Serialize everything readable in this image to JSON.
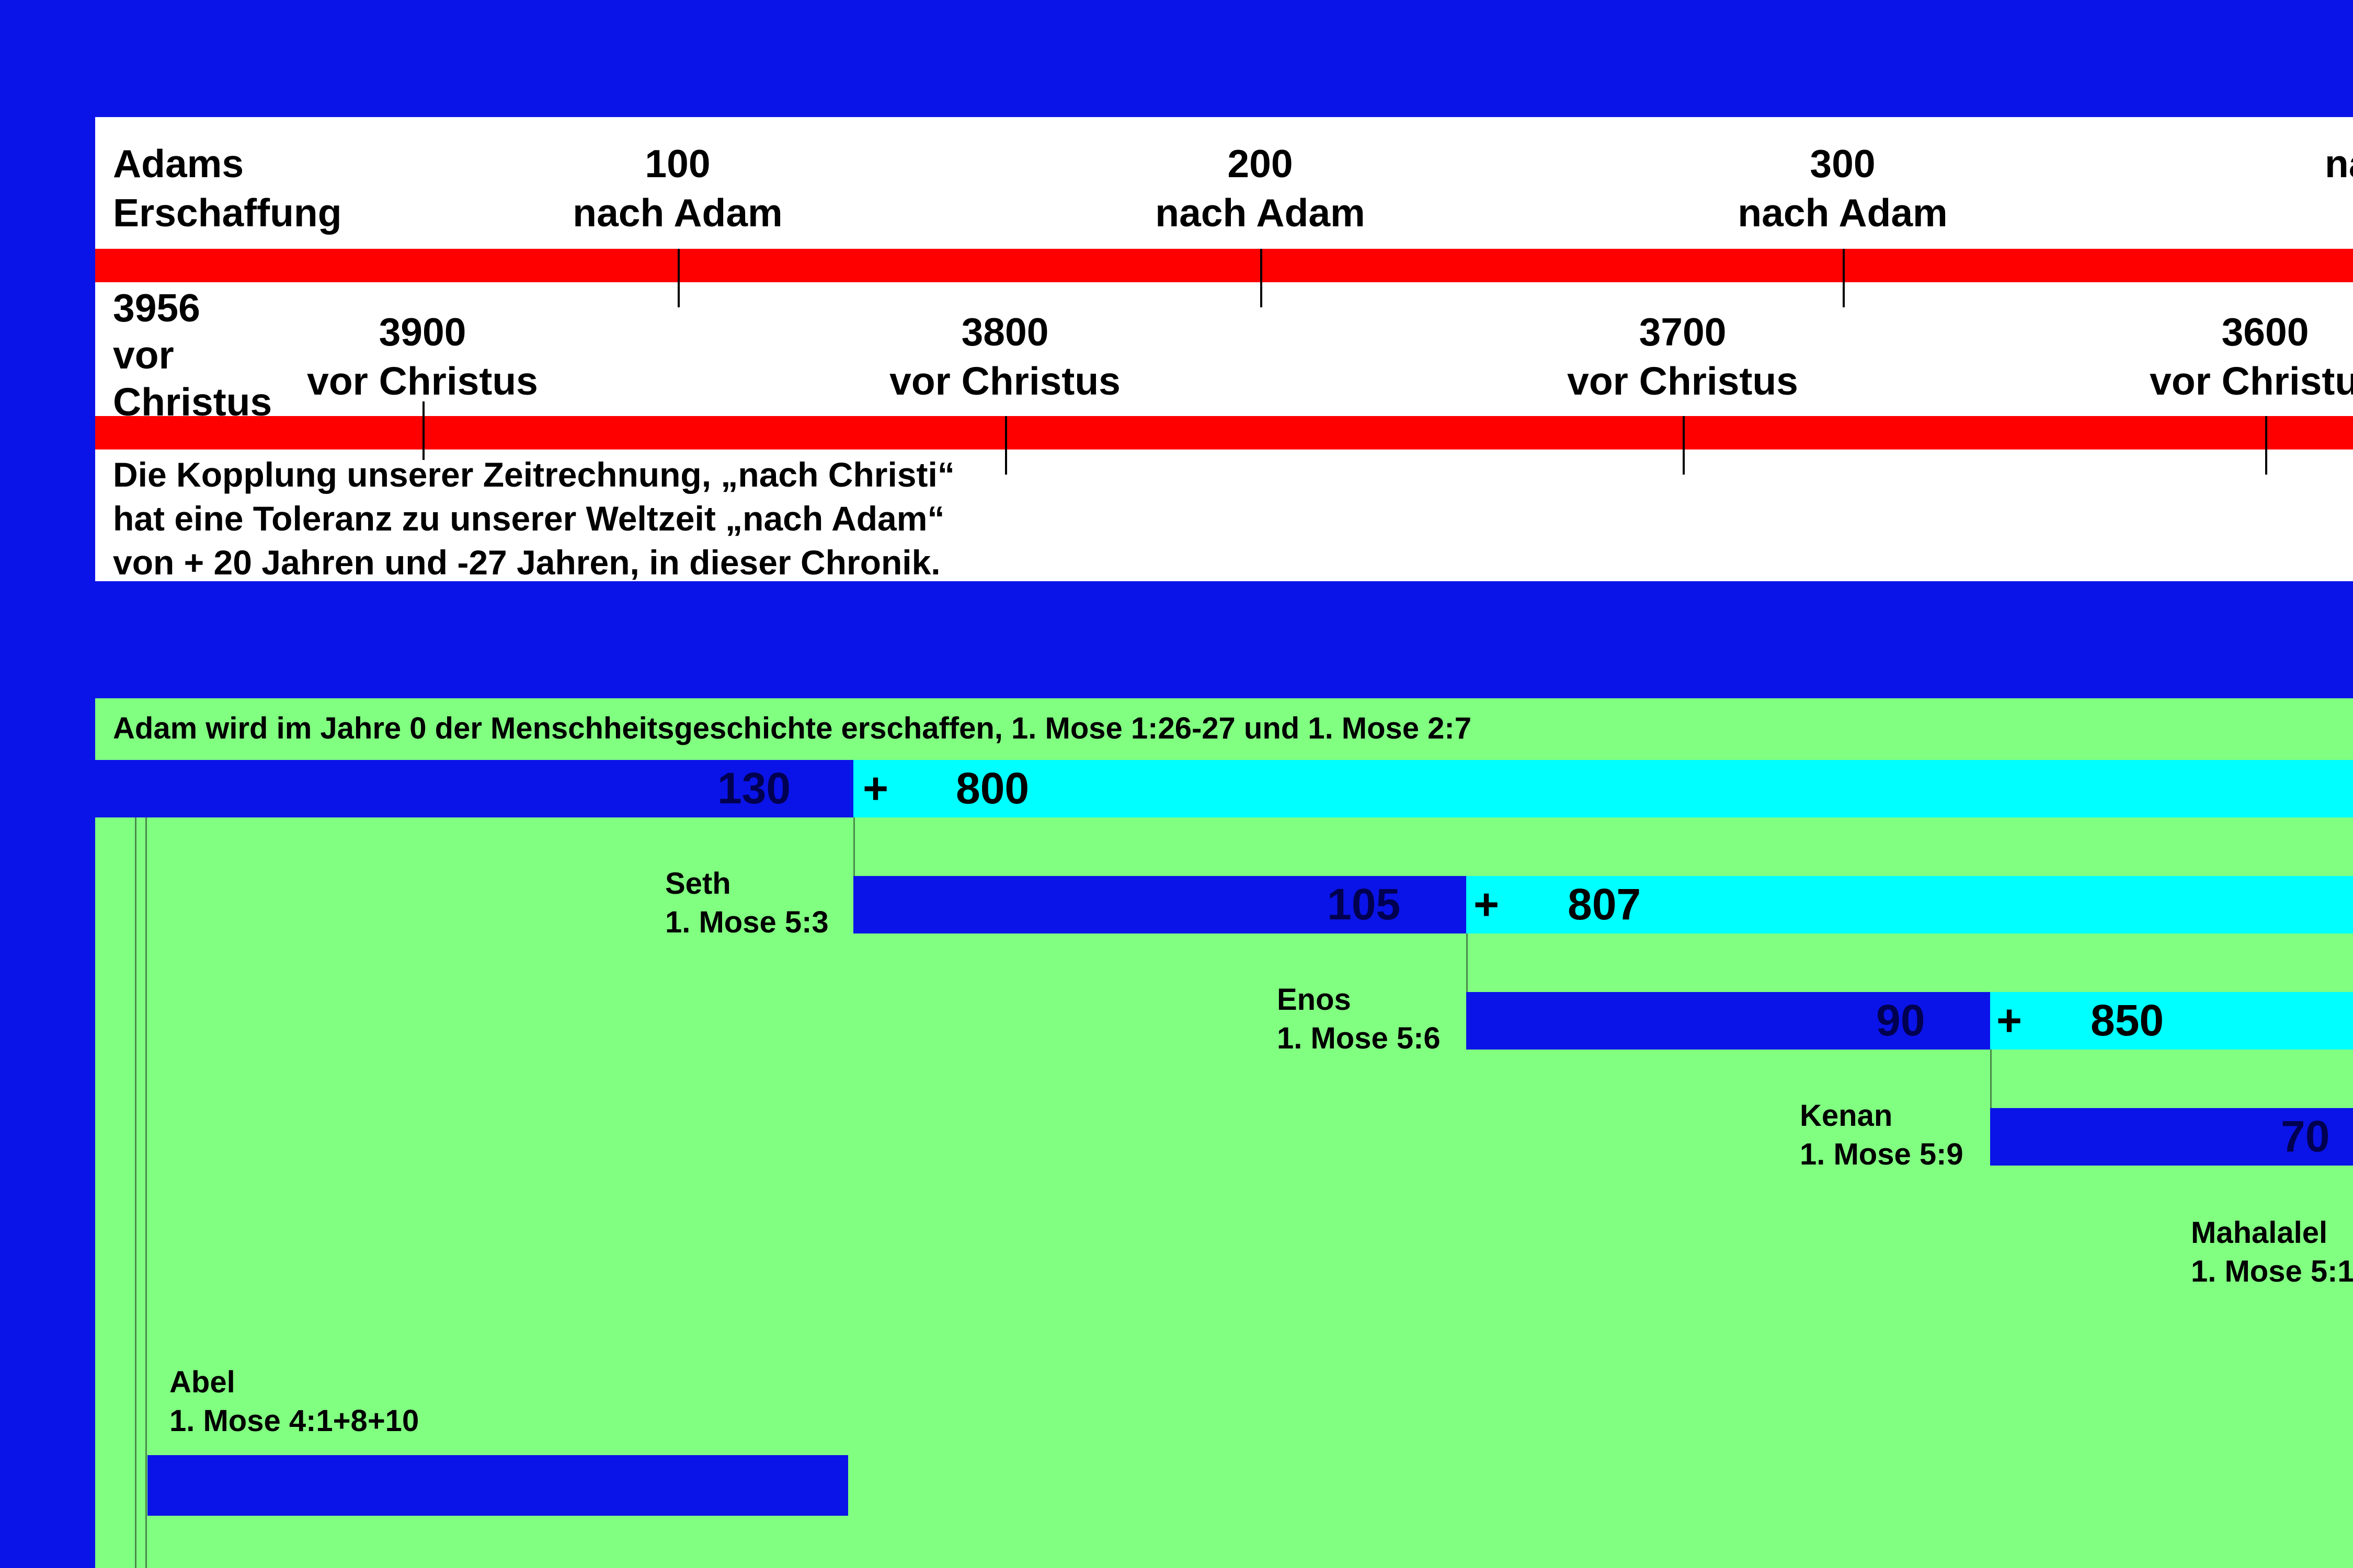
{
  "timeline": {
    "start_label": [
      "Adams",
      "Erschaffung"
    ],
    "start_bc_label": [
      "3956",
      "vor",
      "Christus"
    ],
    "after_adam": [
      {
        "year": "100",
        "suffix": "nach Adam"
      },
      {
        "year": "200",
        "suffix": "nach Adam"
      },
      {
        "year": "300",
        "suffix": "nach Adam"
      },
      {
        "year": "",
        "suffix": "na"
      }
    ],
    "before_christ": [
      {
        "year": "3900",
        "suffix": "vor Christus"
      },
      {
        "year": "3800",
        "suffix": "vor Christus"
      },
      {
        "year": "3700",
        "suffix": "vor Christus"
      },
      {
        "year": "3600",
        "suffix": "vor Christus"
      }
    ],
    "note": [
      "Die Kopplung unserer Zeitrechnung, „nach Christi“",
      "hat eine Toleranz zu unserer Weltzeit „nach Adam“",
      "von + 20 Jahren und -27 Jahren, in dieser Chronik."
    ]
  },
  "genealogy": {
    "caption": "Adam wird im Jahre 0 der Menschheitsgeschichte erschaffen, 1. Mose 1:26-27 und 1. Mose 2:7",
    "plus_sign": "+",
    "persons": [
      {
        "name": "",
        "ref": "",
        "age_at_son": "130",
        "remaining": "800"
      },
      {
        "name": "Seth",
        "ref": "1. Mose 5:3",
        "age_at_son": "105",
        "remaining": "807"
      },
      {
        "name": "Enos",
        "ref": "1. Mose 5:6",
        "age_at_son": "90",
        "remaining": "850"
      },
      {
        "name": "Kenan",
        "ref": "1. Mose 5:9",
        "age_at_son": "70",
        "remaining": ""
      },
      {
        "name": "Mahalalel",
        "ref": "1. Mose 5:1",
        "age_at_son": "",
        "remaining": ""
      }
    ],
    "abel": {
      "name": "Abel",
      "ref": "1. Mose 4:1+8+10"
    }
  },
  "colors": {
    "background": "#0a14e8",
    "timeline_bar": "#ff0000",
    "generation_bar": "#0a14e8",
    "remaining_bar": "#00ffff",
    "panel": "#80ff80"
  }
}
